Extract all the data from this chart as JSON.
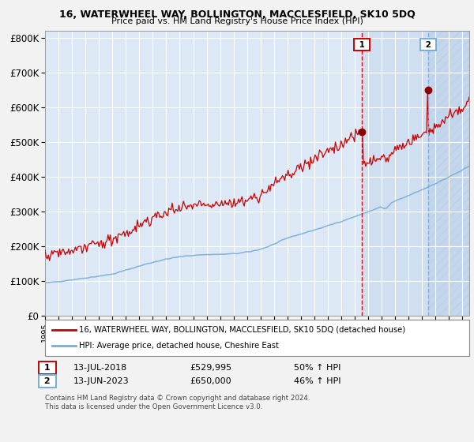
{
  "title": "16, WATERWHEEL WAY, BOLLINGTON, MACCLESFIELD, SK10 5DQ",
  "subtitle": "Price paid vs. HM Land Registry's House Price Index (HPI)",
  "red_label": "16, WATERWHEEL WAY, BOLLINGTON, MACCLESFIELD, SK10 5DQ (detached house)",
  "blue_label": "HPI: Average price, detached house, Cheshire East",
  "sale1_date": "13-JUL-2018",
  "sale1_price": 529995,
  "sale1_hpi_pct": "50% ↑ HPI",
  "sale2_date": "13-JUN-2023",
  "sale2_price": 650000,
  "sale2_hpi_pct": "46% ↑ HPI",
  "footer": "Contains HM Land Registry data © Crown copyright and database right 2024.\nThis data is licensed under the Open Government Licence v3.0.",
  "ylim": [
    0,
    820000
  ],
  "yticks": [
    0,
    100000,
    200000,
    300000,
    400000,
    500000,
    600000,
    700000,
    800000
  ],
  "ytick_labels": [
    "£0",
    "£100K",
    "£200K",
    "£300K",
    "£400K",
    "£500K",
    "£600K",
    "£700K",
    "£800K"
  ],
  "fig_bg": "#f2f2f2",
  "plot_bg": "#dce8f5",
  "red_color": "#cc0000",
  "blue_color": "#7aadd4",
  "grid_color": "#ffffff",
  "marker_color": "#8b0000",
  "vline1_color": "#cc0000",
  "vline2_color": "#7aadd4",
  "sale1_year": 2018.53,
  "sale2_year": 2023.45,
  "start_year": 1995.0,
  "end_year": 2026.5
}
